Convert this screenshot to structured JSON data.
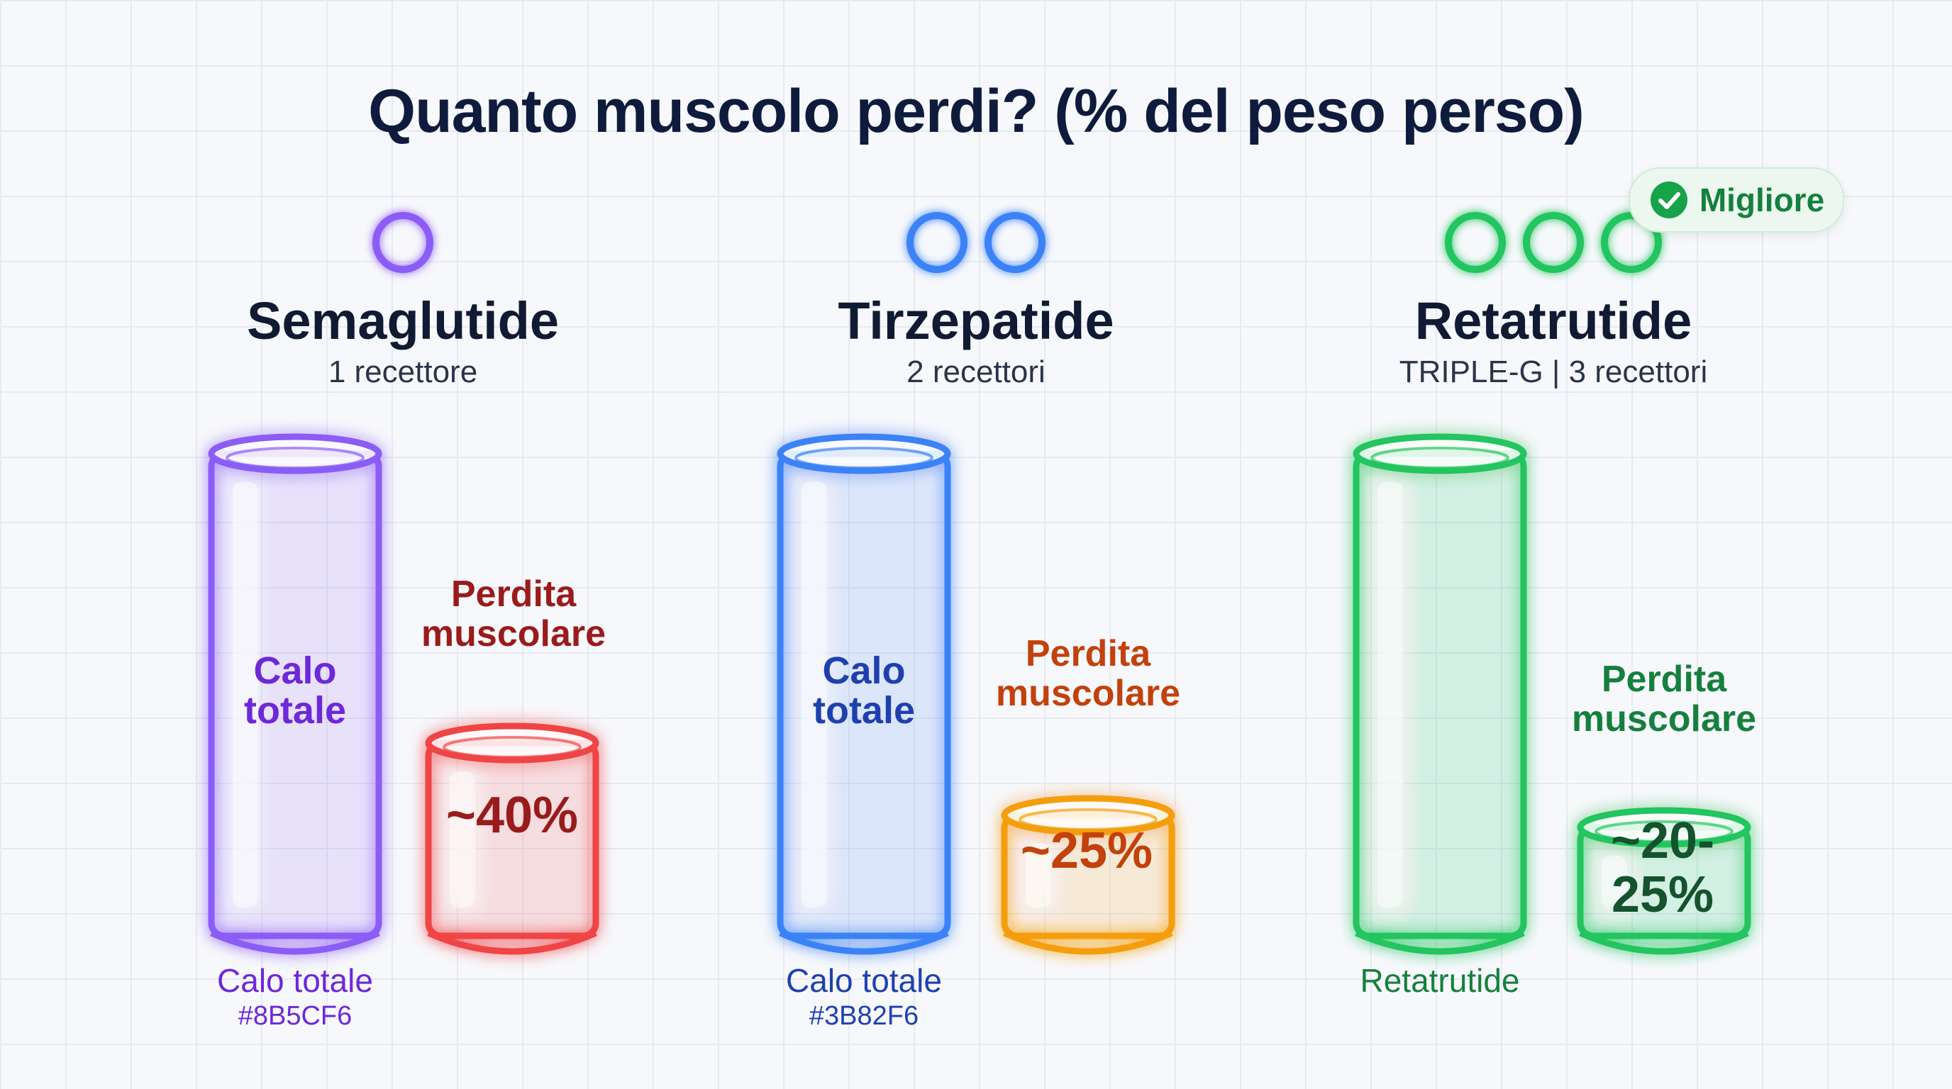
{
  "title": "Quanto muscolo perdi? (% del peso perso)",
  "badge": {
    "label": "Migliore",
    "icon": "check-badge-icon",
    "color": "#16a34a"
  },
  "drugs": [
    {
      "name": "Semaglutide",
      "subtitle": "1 recettore",
      "receptors": 1,
      "total_label": "Calo totale",
      "total_label_color": "#6d28d9",
      "muscle_label": "Perdita muscolare",
      "muscle_label_color": "#991b1b",
      "muscle_value_text": "~40%",
      "muscle_value": 40,
      "footer_label": "Calo totale",
      "footer_hex": "#8B5CF6",
      "total_color": "#8b5cf6",
      "muscle_color": "#ef4444",
      "muscle_text_color": "#991b1b"
    },
    {
      "name": "Tirzepatide",
      "subtitle": "2 recettori",
      "receptors": 2,
      "total_label": "Calo totale",
      "total_label_color": "#1e40af",
      "muscle_label": "Perdita muscolare",
      "muscle_label_color": "#c2410c",
      "muscle_value_text": "~25%",
      "muscle_value": 25,
      "footer_label": "Calo totale",
      "footer_hex": "#3B82F6",
      "total_color": "#3b82f6",
      "muscle_color": "#f59e0b",
      "muscle_text_color": "#c2410c"
    },
    {
      "name": "Retatrutide",
      "subtitle": "TRIPLE-G | 3 recettori",
      "receptors": 3,
      "total_label": "",
      "total_label_color": "#15803d",
      "muscle_label": "Perdita muscolare",
      "muscle_label_color": "#15803d",
      "muscle_value_text": "~20-25%",
      "muscle_value": 22.5,
      "footer_label": "Retatrutide",
      "footer_hex": "",
      "total_color": "#22c55e",
      "muscle_color": "#22c55e",
      "muscle_text_color": "#14532d"
    }
  ],
  "chart_data": {
    "type": "bar",
    "title": "Quanto muscolo perdi? (% del peso perso)",
    "categories": [
      "Semaglutide",
      "Tirzepatide",
      "Retatrutide"
    ],
    "series": [
      {
        "name": "Calo totale",
        "values": [
          100,
          100,
          100
        ]
      },
      {
        "name": "Perdita muscolare",
        "values": [
          40,
          25,
          22.5
        ]
      }
    ],
    "value_labels": [
      "~40%",
      "~25%",
      "~20-25%"
    ],
    "ylim": [
      0,
      100
    ],
    "grid": true,
    "legend": "none"
  }
}
